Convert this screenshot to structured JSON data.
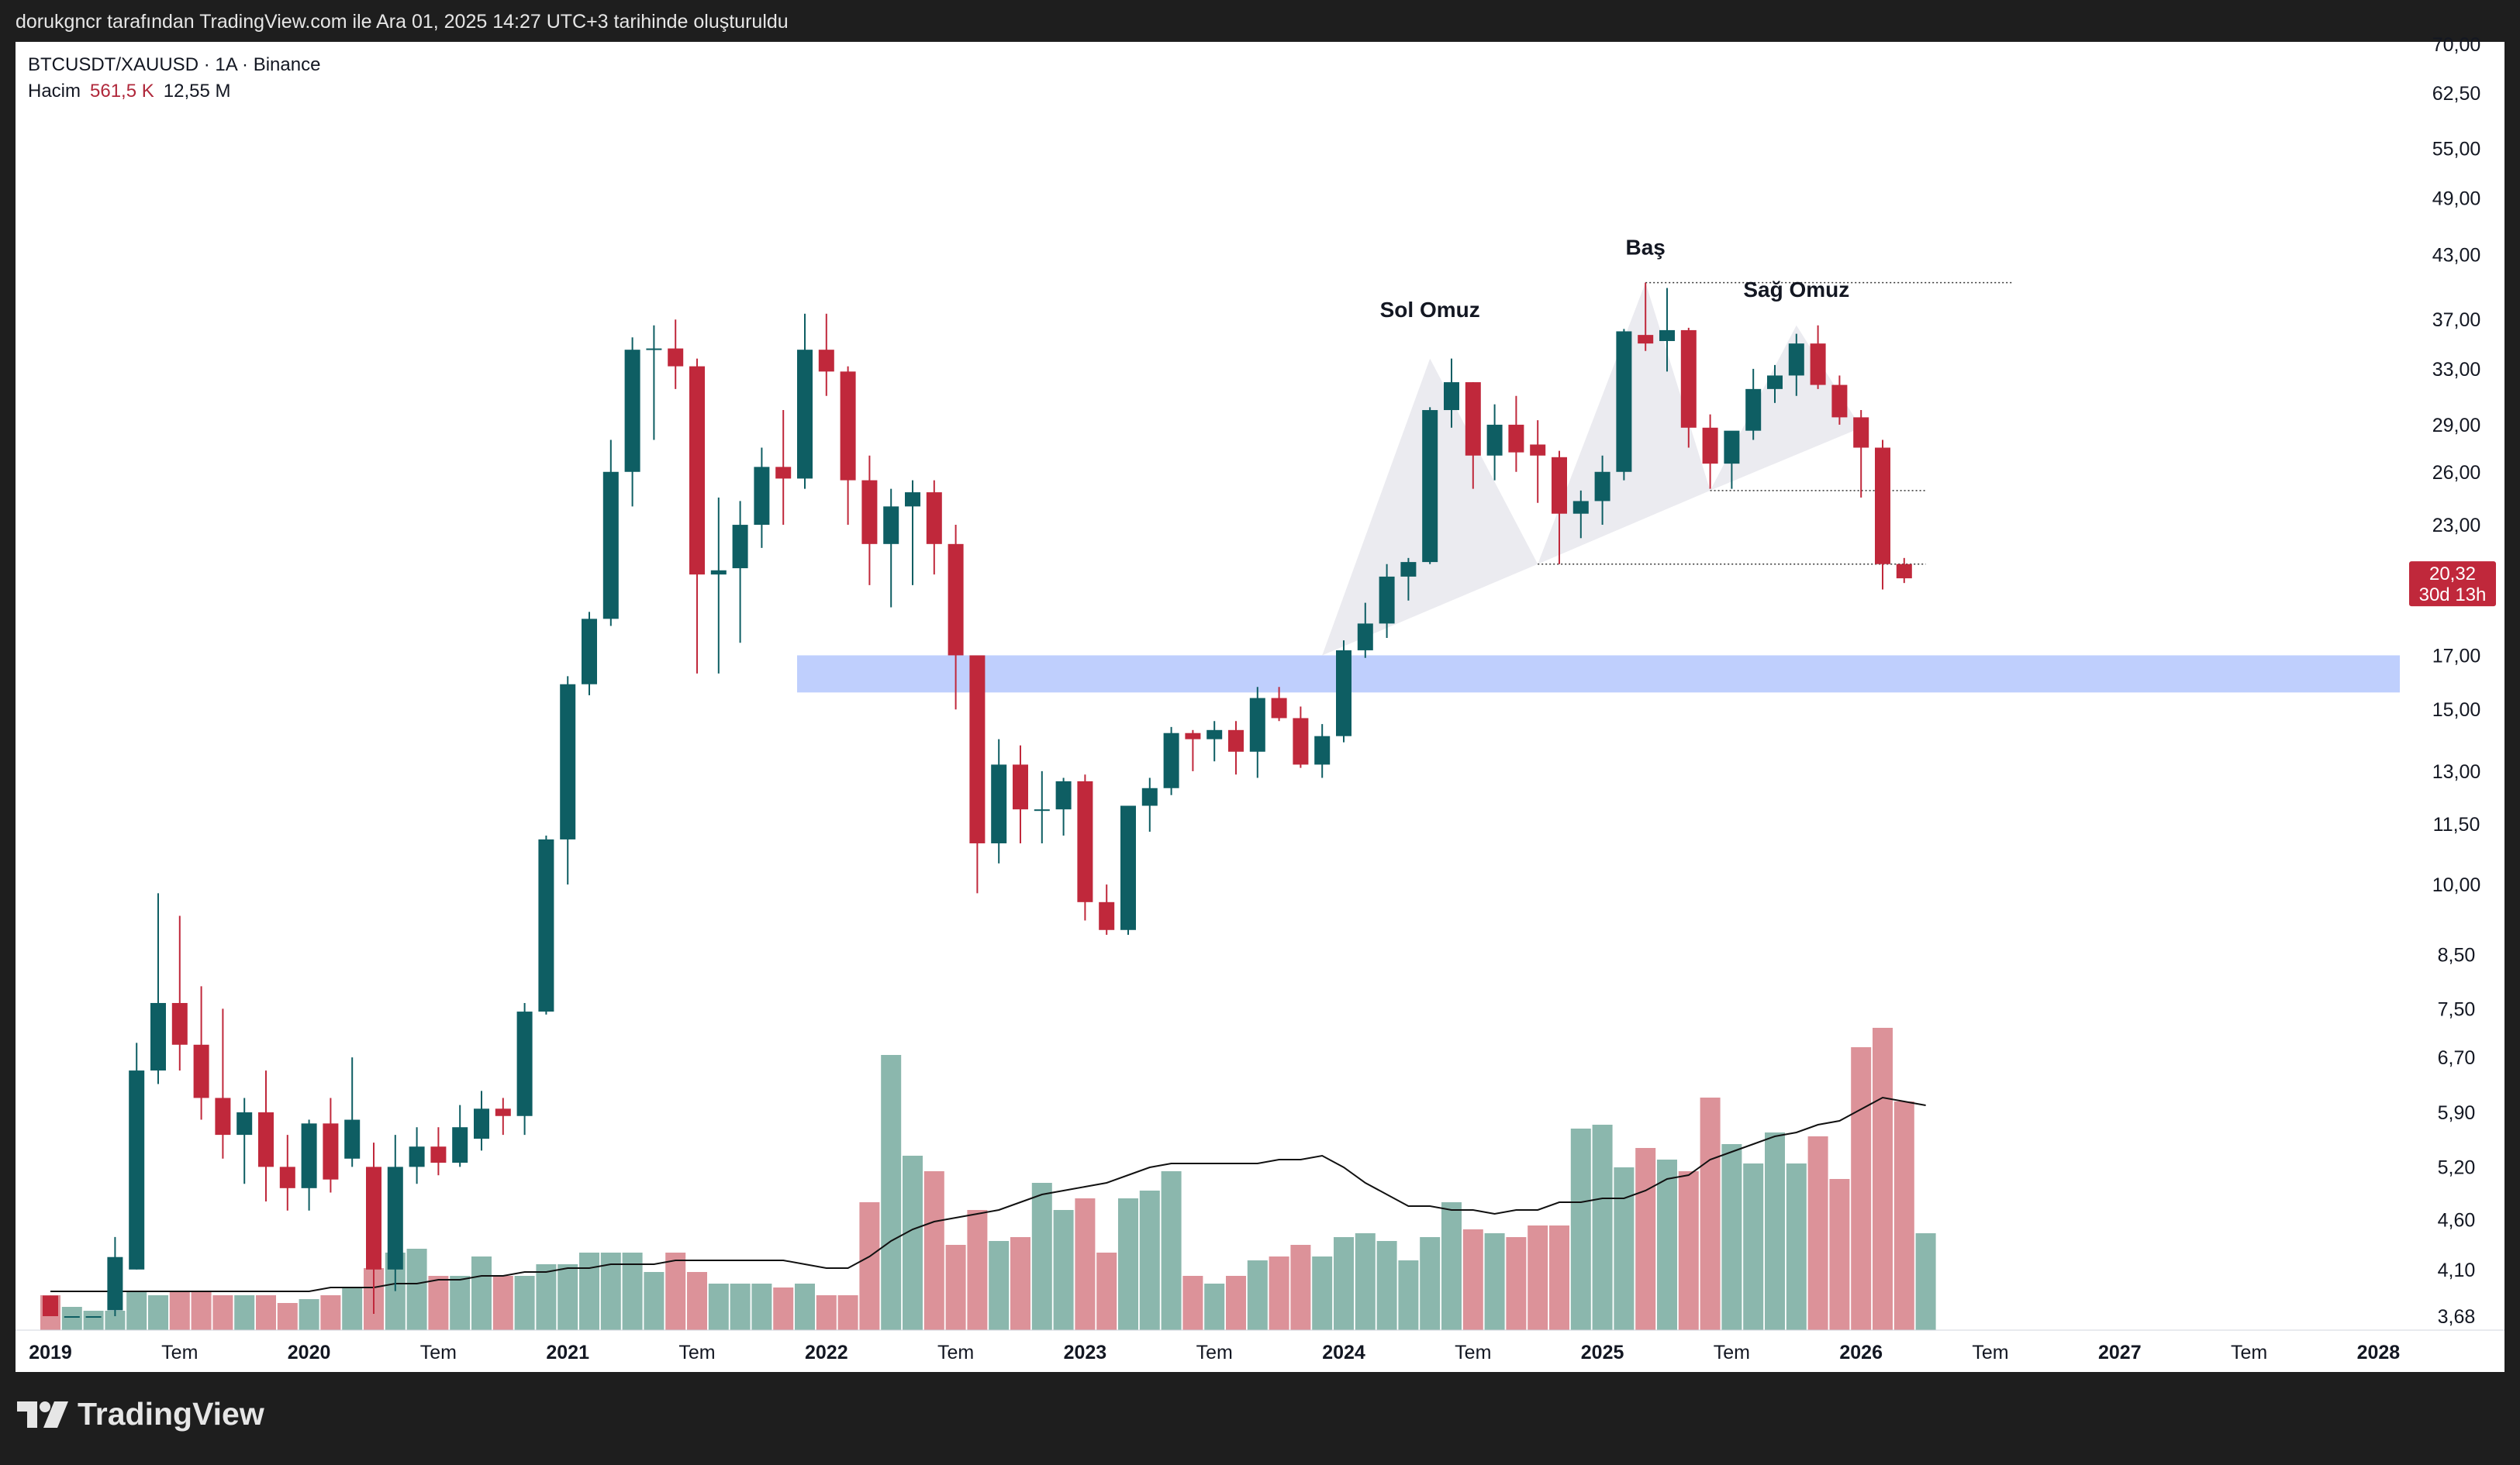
{
  "header": {
    "snapshot_note": "dorukgncr tarafından TradingView.com ile Ara 01, 2025 14:27 UTC+3 tarihinde oluşturuldu"
  },
  "legend": {
    "symbol": "BTCUSDT/XAUUSD · 1A · Binance",
    "volume_label": "Hacim",
    "volume_value": "561,5 K",
    "volume_ma_value": "12,55 M"
  },
  "brand": {
    "name": "TradingView"
  },
  "colors": {
    "up": "#0e5e63",
    "down": "#c0283b",
    "volume_up": "#8bb7ad",
    "volume_down": "#dc9299",
    "zone": "#bfcffd",
    "pattern_fill": "#e8e7ed"
  },
  "chart_data": {
    "type": "candlestick",
    "title": "BTCUSDT/XAUUSD · 1A · Binance",
    "scale": "log",
    "y_ticks": [
      70,
      62.5,
      55,
      49,
      43,
      37,
      33,
      29,
      26,
      23,
      17,
      15,
      13,
      11.5,
      10,
      8.5,
      7.5,
      6.7,
      5.9,
      5.2,
      4.6,
      4.1,
      3.68
    ],
    "y_tick_labels": [
      "70,00",
      "62,50",
      "55,00",
      "49,00",
      "43,00",
      "37,00",
      "33,00",
      "29,00",
      "26,00",
      "23,00",
      "17,00",
      "15,00",
      "13,00",
      "11,50",
      "10,00",
      "8,50",
      "7,50",
      "6,70",
      "5,90",
      "5,20",
      "4,60",
      "4,10",
      "3,68"
    ],
    "x_labels": [
      "2019",
      "Tem",
      "2020",
      "Tem",
      "2021",
      "Tem",
      "2022",
      "Tem",
      "2023",
      "Tem",
      "2024",
      "Tem",
      "2025",
      "Tem",
      "2026",
      "Tem",
      "2027",
      "Tem",
      "2028"
    ],
    "x_label_months": [
      0,
      6,
      12,
      18,
      24,
      30,
      36,
      42,
      48,
      54,
      60,
      66,
      72,
      78,
      84,
      90,
      96,
      102,
      108
    ],
    "months_start": "2019-01",
    "ohlc": [
      {
        "o": 3.86,
        "h": 3.86,
        "l": 3.68,
        "c": 3.68
      },
      {
        "o": 3.68,
        "h": 3.68,
        "l": 3.68,
        "c": 3.68
      },
      {
        "o": 3.68,
        "h": 3.68,
        "l": 3.68,
        "c": 3.68
      },
      {
        "o": 3.73,
        "h": 4.42,
        "l": 3.68,
        "c": 4.22
      },
      {
        "o": 4.1,
        "h": 6.93,
        "l": 4.1,
        "c": 6.5
      },
      {
        "o": 6.5,
        "h": 9.8,
        "l": 6.3,
        "c": 7.6
      },
      {
        "o": 7.6,
        "h": 9.3,
        "l": 6.5,
        "c": 6.9
      },
      {
        "o": 6.9,
        "h": 7.9,
        "l": 5.8,
        "c": 6.1
      },
      {
        "o": 6.1,
        "h": 7.5,
        "l": 5.3,
        "c": 5.6
      },
      {
        "o": 5.6,
        "h": 6.1,
        "l": 5.0,
        "c": 5.9
      },
      {
        "o": 5.9,
        "h": 6.5,
        "l": 4.8,
        "c": 5.2
      },
      {
        "o": 5.2,
        "h": 5.6,
        "l": 4.7,
        "c": 4.95
      },
      {
        "o": 4.95,
        "h": 5.8,
        "l": 4.7,
        "c": 5.75
      },
      {
        "o": 5.75,
        "h": 6.1,
        "l": 4.9,
        "c": 5.05
      },
      {
        "o": 5.3,
        "h": 6.7,
        "l": 5.2,
        "c": 5.8
      },
      {
        "o": 5.2,
        "h": 5.5,
        "l": 3.7,
        "c": 4.1
      },
      {
        "o": 4.1,
        "h": 5.6,
        "l": 3.9,
        "c": 5.2
      },
      {
        "o": 5.2,
        "h": 5.7,
        "l": 5.0,
        "c": 5.45
      },
      {
        "o": 5.45,
        "h": 5.7,
        "l": 5.1,
        "c": 5.25
      },
      {
        "o": 5.25,
        "h": 6.0,
        "l": 5.2,
        "c": 5.7
      },
      {
        "o": 5.55,
        "h": 6.2,
        "l": 5.4,
        "c": 5.95
      },
      {
        "o": 5.95,
        "h": 6.1,
        "l": 5.6,
        "c": 5.85
      },
      {
        "o": 5.85,
        "h": 7.6,
        "l": 5.6,
        "c": 7.45
      },
      {
        "o": 7.45,
        "h": 11.2,
        "l": 7.4,
        "c": 11.1
      },
      {
        "o": 11.1,
        "h": 16.2,
        "l": 10.0,
        "c": 15.9
      },
      {
        "o": 15.9,
        "h": 18.8,
        "l": 15.5,
        "c": 18.5
      },
      {
        "o": 18.5,
        "h": 28.0,
        "l": 18.2,
        "c": 26.0
      },
      {
        "o": 26.0,
        "h": 35.5,
        "l": 24.0,
        "c": 34.5
      },
      {
        "o": 34.5,
        "h": 36.5,
        "l": 28.0,
        "c": 34.6
      },
      {
        "o": 34.6,
        "h": 37.0,
        "l": 31.5,
        "c": 33.2
      },
      {
        "o": 33.2,
        "h": 33.8,
        "l": 16.3,
        "c": 20.5
      },
      {
        "o": 20.5,
        "h": 24.5,
        "l": 16.3,
        "c": 20.7
      },
      {
        "o": 20.8,
        "h": 24.3,
        "l": 17.5,
        "c": 23.0
      },
      {
        "o": 23.0,
        "h": 27.5,
        "l": 21.8,
        "c": 26.3
      },
      {
        "o": 26.3,
        "h": 30.0,
        "l": 23.0,
        "c": 25.6
      },
      {
        "o": 25.6,
        "h": 37.5,
        "l": 25.0,
        "c": 34.5
      },
      {
        "o": 34.5,
        "h": 37.5,
        "l": 31.0,
        "c": 32.8
      },
      {
        "o": 32.8,
        "h": 33.2,
        "l": 23.0,
        "c": 25.5
      },
      {
        "o": 25.5,
        "h": 27.0,
        "l": 20.0,
        "c": 22.0
      },
      {
        "o": 22.0,
        "h": 25.0,
        "l": 19.0,
        "c": 24.0
      },
      {
        "o": 24.0,
        "h": 25.5,
        "l": 20.0,
        "c": 24.8
      },
      {
        "o": 24.8,
        "h": 25.5,
        "l": 20.5,
        "c": 22.0
      },
      {
        "o": 22.0,
        "h": 23.0,
        "l": 15.0,
        "c": 17.0
      },
      {
        "o": 17.0,
        "h": 17.0,
        "l": 9.8,
        "c": 11.0
      },
      {
        "o": 11.0,
        "h": 14.0,
        "l": 10.5,
        "c": 13.2
      },
      {
        "o": 13.2,
        "h": 13.8,
        "l": 11.0,
        "c": 11.9
      },
      {
        "o": 11.9,
        "h": 13.0,
        "l": 11.0,
        "c": 11.9
      },
      {
        "o": 11.9,
        "h": 12.8,
        "l": 11.2,
        "c": 12.7
      },
      {
        "o": 12.7,
        "h": 12.9,
        "l": 9.2,
        "c": 9.6
      },
      {
        "o": 9.6,
        "h": 10.0,
        "l": 8.9,
        "c": 9.0
      },
      {
        "o": 9.0,
        "h": 12.0,
        "l": 8.9,
        "c": 12.0
      },
      {
        "o": 12.0,
        "h": 12.8,
        "l": 11.3,
        "c": 12.5
      },
      {
        "o": 12.5,
        "h": 14.4,
        "l": 12.3,
        "c": 14.2
      },
      {
        "o": 14.2,
        "h": 14.3,
        "l": 13.0,
        "c": 14.0
      },
      {
        "o": 14.0,
        "h": 14.6,
        "l": 13.3,
        "c": 14.3
      },
      {
        "o": 14.3,
        "h": 14.6,
        "l": 12.9,
        "c": 13.6
      },
      {
        "o": 13.6,
        "h": 15.8,
        "l": 12.8,
        "c": 15.4
      },
      {
        "o": 15.4,
        "h": 15.8,
        "l": 14.6,
        "c": 14.7
      },
      {
        "o": 14.7,
        "h": 15.1,
        "l": 13.1,
        "c": 13.2
      },
      {
        "o": 13.2,
        "h": 14.5,
        "l": 12.8,
        "c": 14.1
      },
      {
        "o": 14.1,
        "h": 17.6,
        "l": 13.9,
        "c": 17.2
      },
      {
        "o": 17.2,
        "h": 19.2,
        "l": 16.9,
        "c": 18.3
      },
      {
        "o": 18.3,
        "h": 21.0,
        "l": 17.7,
        "c": 20.4
      },
      {
        "o": 20.4,
        "h": 21.3,
        "l": 19.3,
        "c": 21.1
      },
      {
        "o": 21.1,
        "h": 30.2,
        "l": 21.0,
        "c": 30.0
      },
      {
        "o": 30.0,
        "h": 33.8,
        "l": 28.8,
        "c": 32.0
      },
      {
        "o": 32.0,
        "h": 32.0,
        "l": 25.0,
        "c": 27.0
      },
      {
        "o": 27.0,
        "h": 30.4,
        "l": 25.5,
        "c": 29.0
      },
      {
        "o": 29.0,
        "h": 31.0,
        "l": 26.0,
        "c": 27.2
      },
      {
        "o": 27.7,
        "h": 29.3,
        "l": 24.2,
        "c": 27.0
      },
      {
        "o": 26.9,
        "h": 27.3,
        "l": 21.0,
        "c": 23.6
      },
      {
        "o": 23.6,
        "h": 24.9,
        "l": 22.3,
        "c": 24.3
      },
      {
        "o": 24.3,
        "h": 27.0,
        "l": 23.0,
        "c": 26.0
      },
      {
        "o": 26.0,
        "h": 36.2,
        "l": 25.5,
        "c": 36.0
      },
      {
        "o": 35.7,
        "h": 40.3,
        "l": 34.4,
        "c": 35.0
      },
      {
        "o": 35.2,
        "h": 39.8,
        "l": 32.8,
        "c": 36.1
      },
      {
        "o": 36.1,
        "h": 36.3,
        "l": 27.5,
        "c": 28.8
      },
      {
        "o": 28.8,
        "h": 29.7,
        "l": 25.0,
        "c": 26.5
      },
      {
        "o": 26.5,
        "h": 28.5,
        "l": 25.0,
        "c": 28.6
      },
      {
        "o": 28.6,
        "h": 33.0,
        "l": 28.0,
        "c": 31.5
      },
      {
        "o": 31.5,
        "h": 33.3,
        "l": 30.5,
        "c": 32.5
      },
      {
        "o": 32.5,
        "h": 35.8,
        "l": 31.0,
        "c": 35.0
      },
      {
        "o": 35.0,
        "h": 36.5,
        "l": 31.5,
        "c": 31.8
      },
      {
        "o": 31.8,
        "h": 32.5,
        "l": 29.0,
        "c": 29.5
      },
      {
        "o": 29.5,
        "h": 30.0,
        "l": 24.5,
        "c": 27.5
      },
      {
        "o": 27.5,
        "h": 28.0,
        "l": 19.8,
        "c": 21.0
      },
      {
        "o": 21.0,
        "h": 21.3,
        "l": 20.1,
        "c": 20.32
      }
    ],
    "volume_scale": "relative (0-1)",
    "volume": [
      0.09,
      0.06,
      0.05,
      0.05,
      0.1,
      0.09,
      0.1,
      0.1,
      0.09,
      0.09,
      0.09,
      0.07,
      0.08,
      0.09,
      0.11,
      0.16,
      0.2,
      0.21,
      0.14,
      0.14,
      0.19,
      0.14,
      0.14,
      0.17,
      0.17,
      0.2,
      0.2,
      0.2,
      0.15,
      0.2,
      0.15,
      0.12,
      0.12,
      0.12,
      0.11,
      0.12,
      0.09,
      0.09,
      0.33,
      0.71,
      0.45,
      0.41,
      0.22,
      0.31,
      0.23,
      0.24,
      0.38,
      0.31,
      0.34,
      0.2,
      0.34,
      0.36,
      0.41,
      0.14,
      0.12,
      0.14,
      0.18,
      0.19,
      0.22,
      0.19,
      0.24,
      0.25,
      0.23,
      0.18,
      0.24,
      0.33,
      0.26,
      0.25,
      0.24,
      0.27,
      0.27,
      0.52,
      0.53,
      0.42,
      0.47,
      0.44,
      0.41,
      0.6,
      0.48,
      0.43,
      0.51,
      0.43,
      0.5,
      0.39,
      0.73,
      0.78,
      0.59,
      0.25
    ],
    "volume_ma": [
      0.1,
      0.1,
      0.1,
      0.1,
      0.1,
      0.1,
      0.1,
      0.1,
      0.1,
      0.1,
      0.1,
      0.1,
      0.1,
      0.11,
      0.11,
      0.11,
      0.12,
      0.12,
      0.13,
      0.13,
      0.14,
      0.14,
      0.15,
      0.15,
      0.16,
      0.16,
      0.17,
      0.17,
      0.17,
      0.18,
      0.18,
      0.18,
      0.18,
      0.18,
      0.18,
      0.17,
      0.16,
      0.16,
      0.19,
      0.23,
      0.26,
      0.28,
      0.29,
      0.3,
      0.31,
      0.33,
      0.35,
      0.36,
      0.37,
      0.38,
      0.4,
      0.42,
      0.43,
      0.43,
      0.43,
      0.43,
      0.43,
      0.44,
      0.44,
      0.45,
      0.42,
      0.38,
      0.35,
      0.32,
      0.32,
      0.31,
      0.31,
      0.3,
      0.31,
      0.31,
      0.33,
      0.33,
      0.34,
      0.34,
      0.36,
      0.39,
      0.4,
      0.44,
      0.46,
      0.48,
      0.5,
      0.51,
      0.53,
      0.54,
      0.57,
      0.6,
      0.59,
      0.58
    ],
    "zone": {
      "low": 15.6,
      "high": 17.0
    },
    "dotted_levels": [
      {
        "value": 40.3,
        "from": 74,
        "to": 91
      },
      {
        "value": 24.9,
        "from": 77,
        "to": 87
      },
      {
        "value": 21.0,
        "from": 69,
        "to": 87
      }
    ],
    "annotations": [
      {
        "text": "Sol Omuz",
        "month": 64,
        "value": 37.2
      },
      {
        "text": "Baş",
        "month": 74,
        "value": 43.0
      },
      {
        "text": "Sağ Omuz",
        "month": 81,
        "value": 39.0
      }
    ],
    "pattern": [
      {
        "m": 59,
        "v": 17.0
      },
      {
        "m": 64,
        "v": 33.8
      },
      {
        "m": 69,
        "v": 21.0
      },
      {
        "m": 74,
        "v": 40.3
      },
      {
        "m": 77,
        "v": 24.9
      },
      {
        "m": 81,
        "v": 36.5
      },
      {
        "m": 84,
        "v": 28.8
      }
    ],
    "price_label": {
      "value": 20.32,
      "text": "20,32",
      "countdown": "30d 13h"
    }
  }
}
